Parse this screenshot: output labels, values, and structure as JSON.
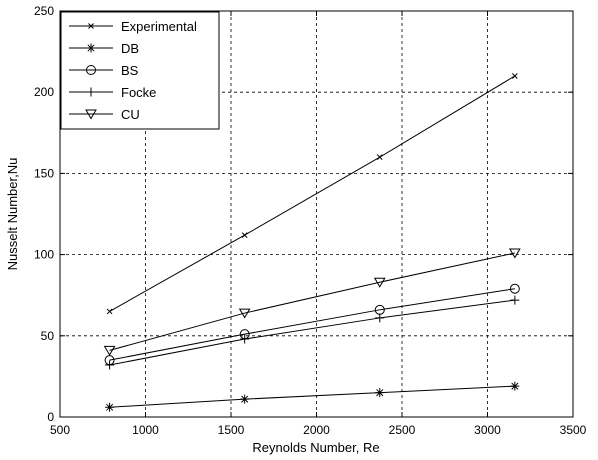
{
  "chart_data": {
    "type": "line",
    "title": "",
    "xlabel": "Reynolds Number, Re",
    "ylabel": "Nusselt Number,Nu",
    "xlim": [
      500,
      3500
    ],
    "ylim": [
      0,
      250
    ],
    "xticks": [
      500,
      1000,
      1500,
      2000,
      2500,
      3000,
      3500
    ],
    "yticks": [
      0,
      50,
      100,
      150,
      200,
      250
    ],
    "grid": true,
    "legend_position": "top-left",
    "x": [
      790,
      1580,
      2370,
      3160
    ],
    "series": [
      {
        "name": "Experimental",
        "marker": "x",
        "values": [
          65,
          112,
          160,
          210
        ]
      },
      {
        "name": "DB",
        "marker": "asterisk",
        "values": [
          6,
          11,
          15,
          19
        ]
      },
      {
        "name": "BS",
        "marker": "circle",
        "values": [
          35,
          51,
          66,
          79
        ]
      },
      {
        "name": "Focke",
        "marker": "plus",
        "values": [
          32,
          48,
          61,
          72
        ]
      },
      {
        "name": "CU",
        "marker": "triangle-down",
        "values": [
          41,
          64,
          83,
          101
        ]
      }
    ]
  }
}
